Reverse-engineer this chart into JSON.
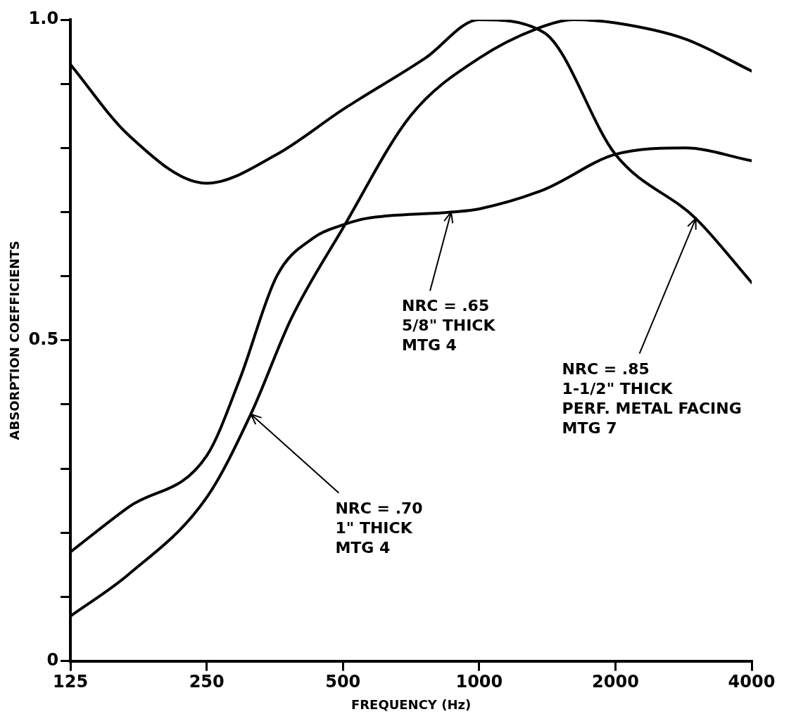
{
  "chart_data": {
    "type": "line",
    "xlabel": "FREQUENCY (Hz)",
    "ylabel": "ABSORPTION COEFFICIENTS",
    "log": "x",
    "xlim": [
      125,
      4000
    ],
    "xticks": [
      125,
      250,
      500,
      1000,
      2000,
      4000
    ],
    "ylim": [
      0,
      1.0
    ],
    "yticks": [
      {
        "value": 0,
        "label": "0"
      },
      {
        "value": 0.1,
        "label": null
      },
      {
        "value": 0.2,
        "label": null
      },
      {
        "value": 0.3,
        "label": null
      },
      {
        "value": 0.4,
        "label": null
      },
      {
        "value": 0.5,
        "label": "0.5"
      },
      {
        "value": 0.6,
        "label": null
      },
      {
        "value": 0.7,
        "label": null
      },
      {
        "value": 0.8,
        "label": null
      },
      {
        "value": 0.9,
        "label": null
      },
      {
        "value": 1.0,
        "label": "1.0"
      }
    ],
    "grid": false,
    "legend": false,
    "marker": "none",
    "line_style": "solid",
    "series": [
      {
        "color": "#000000",
        "x": [
          125,
          168,
          250,
          357,
          500,
          760,
          1000,
          1390,
          2000,
          3010,
          4000
        ],
        "values": [
          0.93,
          0.82,
          0.745,
          0.79,
          0.86,
          0.94,
          1.0,
          0.98,
          0.79,
          0.69,
          0.59
        ]
      },
      {
        "color": "#000000",
        "x": [
          125,
          168,
          250,
          296,
          357,
          431,
          500,
          562,
          867,
          1000,
          1390,
          2000,
          2850,
          4000
        ],
        "values": [
          0.17,
          0.24,
          0.32,
          0.44,
          0.6,
          0.66,
          0.68,
          0.69,
          0.7,
          0.705,
          0.735,
          0.79,
          0.8,
          0.78
        ]
      },
      {
        "color": "#000000",
        "x": [
          125,
          168,
          250,
          313,
          385,
          500,
          705,
          1000,
          1390,
          1617,
          2000,
          2850,
          4000
        ],
        "values": [
          0.07,
          0.135,
          0.255,
          0.385,
          0.535,
          0.675,
          0.85,
          0.94,
          0.99,
          1.0,
          0.995,
          0.97,
          0.92
        ]
      }
    ],
    "annotations": [
      {
        "text": "NRC = .65\n5/8\" THICK\nMTG 4",
        "x": 867,
        "y": 0.7
      },
      {
        "text": "NRC = .85\n1-1/2\" THICK\nPERF. METAL FACING\nMTG 7",
        "x": 3010,
        "y": 0.69
      },
      {
        "text": "NRC = .70\n1\" THICK\nMTG 4",
        "x": 313,
        "y": 0.385
      }
    ]
  }
}
